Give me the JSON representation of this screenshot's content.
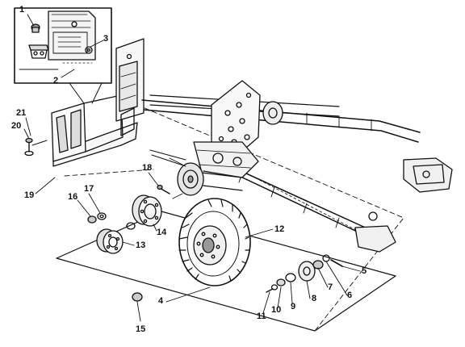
{
  "figure": {
    "ink_color": "#111111",
    "paper_color": "#ffffff",
    "style": "exploded-view line illustration",
    "callouts": [
      {
        "id": "c1",
        "label": "1"
      },
      {
        "id": "c2",
        "label": "2"
      },
      {
        "id": "c3",
        "label": "3"
      },
      {
        "id": "c4",
        "label": "4"
      },
      {
        "id": "c5",
        "label": "5"
      },
      {
        "id": "c6",
        "label": "6"
      },
      {
        "id": "c7",
        "label": "7"
      },
      {
        "id": "c8",
        "label": "8"
      },
      {
        "id": "c9",
        "label": "9"
      },
      {
        "id": "c10",
        "label": "10"
      },
      {
        "id": "c11",
        "label": "11"
      },
      {
        "id": "c12",
        "label": "12"
      },
      {
        "id": "c13",
        "label": "13"
      },
      {
        "id": "c14",
        "label": "14"
      },
      {
        "id": "c15",
        "label": "15"
      },
      {
        "id": "c16",
        "label": "16"
      },
      {
        "id": "c17",
        "label": "17"
      },
      {
        "id": "c18",
        "label": "18"
      },
      {
        "id": "c19",
        "label": "19"
      },
      {
        "id": "c20",
        "label": "20"
      },
      {
        "id": "c21",
        "label": "21"
      }
    ]
  }
}
